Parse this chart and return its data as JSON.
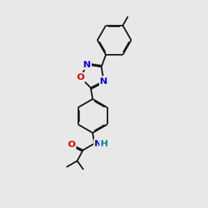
{
  "bg_color": "#e8e8e8",
  "bond_color": "#1a1a1a",
  "bond_width": 1.6,
  "dbo": 0.055,
  "atom_colors": {
    "N": "#0000ee",
    "O": "#dd0000",
    "H": "#008888",
    "C": "#1a1a1a"
  },
  "fs": 9.5
}
